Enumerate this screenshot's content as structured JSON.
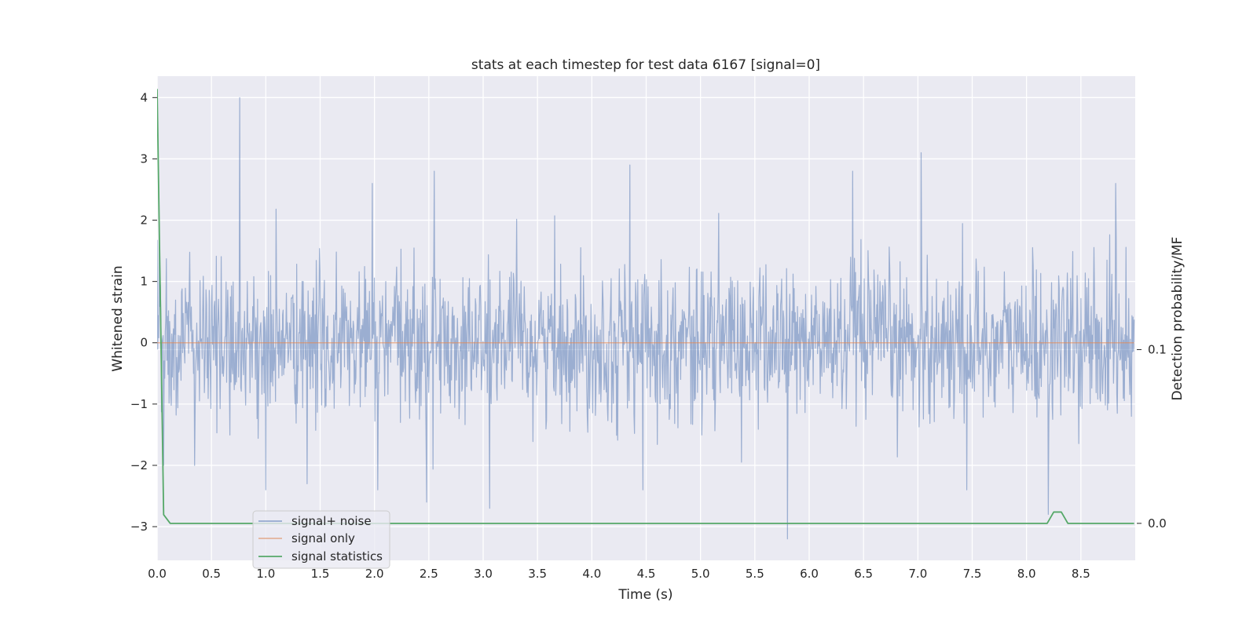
{
  "chart_data": {
    "type": "line",
    "title": "stats at each timestep for test data 6167 [signal=0]",
    "xlabel": "Time (s)",
    "ylabel": "Whitened strain",
    "y2label": "Detection probability/MF",
    "xlim": [
      0.0,
      9.0
    ],
    "ylim": [
      -3.55,
      4.35
    ],
    "y2lim": [
      -0.0213,
      0.2574
    ],
    "x_ticks": [
      0.0,
      0.5,
      1.0,
      1.5,
      2.0,
      2.5,
      3.0,
      3.5,
      4.0,
      4.5,
      5.0,
      5.5,
      6.0,
      6.5,
      7.0,
      7.5,
      8.0,
      8.5
    ],
    "x_tick_labels": [
      "0.0",
      "0.5",
      "1.0",
      "1.5",
      "2.0",
      "2.5",
      "3.0",
      "3.5",
      "4.0",
      "4.5",
      "5.0",
      "5.5",
      "6.0",
      "6.5",
      "7.0",
      "7.5",
      "8.0",
      "8.5"
    ],
    "y_ticks": [
      4,
      3,
      2,
      1,
      0,
      -1,
      -2,
      -3
    ],
    "y_tick_labels": [
      "4",
      "3",
      "2",
      "1",
      "0",
      "−1",
      "−2",
      "−3"
    ],
    "y2_ticks": [
      0.1,
      0.0
    ],
    "y2_tick_labels": [
      "0.1",
      "0.0"
    ],
    "grid": true,
    "legend_position": "lower-left",
    "series": [
      {
        "name": "signal+ noise",
        "color": "#4c72b0",
        "axis": "left",
        "x_range": [
          0.0,
          8.99
        ],
        "peaks": [
          {
            "x": 0.02,
            "y": 1.8
          },
          {
            "x": 0.06,
            "y": -2.0
          },
          {
            "x": 0.76,
            "y": 4.0
          },
          {
            "x": 1.0,
            "y": -2.4
          },
          {
            "x": 1.38,
            "y": -2.3
          },
          {
            "x": 1.98,
            "y": 2.6
          },
          {
            "x": 2.03,
            "y": -2.4
          },
          {
            "x": 2.48,
            "y": -2.6
          },
          {
            "x": 2.55,
            "y": 2.8
          },
          {
            "x": 3.06,
            "y": -2.7
          },
          {
            "x": 4.35,
            "y": 2.9
          },
          {
            "x": 4.47,
            "y": -2.4
          },
          {
            "x": 5.8,
            "y": -3.2
          },
          {
            "x": 6.4,
            "y": 2.8
          },
          {
            "x": 7.03,
            "y": 3.1
          },
          {
            "x": 7.45,
            "y": -2.4
          },
          {
            "x": 8.2,
            "y": -2.8
          },
          {
            "x": 8.82,
            "y": 2.6
          }
        ]
      },
      {
        "name": "signal only",
        "color": "#dd8452",
        "axis": "left",
        "x": [
          0.0,
          8.99
        ],
        "y": [
          0.0,
          0.0
        ]
      },
      {
        "name": "signal statistics",
        "color": "#55a868",
        "axis": "right",
        "x": [
          0.0,
          0.06,
          0.12,
          8.19,
          8.25,
          8.32,
          8.38,
          8.99
        ],
        "y": [
          0.25,
          0.005,
          0.0,
          0.0,
          0.0065,
          0.0065,
          0.0,
          0.0
        ]
      }
    ]
  }
}
